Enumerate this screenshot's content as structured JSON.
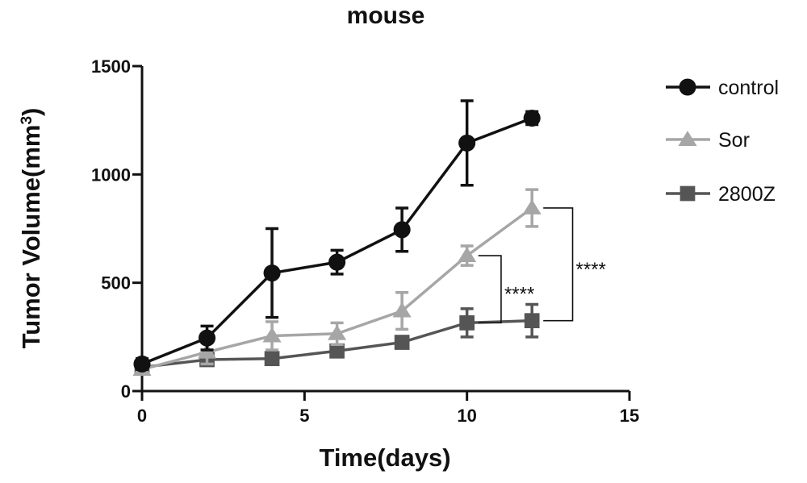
{
  "chart_data": {
    "type": "line",
    "title": "mouse",
    "xlabel": "Time(days)",
    "ylabel": "Tumor Volume(mm",
    "ylabel_superscript": "3",
    "ylabel_close": ")",
    "xlim": [
      0,
      15
    ],
    "ylim": [
      0,
      1500
    ],
    "xticks": [
      0,
      5,
      10,
      15
    ],
    "yticks": [
      0,
      500,
      1000,
      1500
    ],
    "grid": false,
    "legend_position": "right",
    "series": [
      {
        "name": "control",
        "marker": "circle",
        "color": "#111111",
        "x": [
          0,
          2,
          4,
          6,
          8,
          10,
          12
        ],
        "y": [
          125,
          245,
          545,
          595,
          745,
          1145,
          1260
        ],
        "err": [
          25,
          55,
          205,
          55,
          100,
          195,
          30
        ]
      },
      {
        "name": "Sor",
        "marker": "triangle",
        "color": "#a6a6a6",
        "x": [
          0,
          2,
          4,
          6,
          8,
          10,
          12
        ],
        "y": [
          100,
          180,
          255,
          265,
          370,
          625,
          845
        ],
        "err": [
          20,
          55,
          65,
          50,
          85,
          45,
          85
        ]
      },
      {
        "name": "2800Z",
        "marker": "square",
        "color": "#555555",
        "x": [
          0,
          2,
          4,
          6,
          8,
          10,
          12
        ],
        "y": [
          110,
          145,
          150,
          185,
          225,
          315,
          325
        ],
        "err": [
          20,
          20,
          20,
          20,
          20,
          65,
          75
        ]
      }
    ],
    "annotations": [
      {
        "text": "****",
        "from_series": "Sor",
        "to_series": "2800Z",
        "at_x": 10
      },
      {
        "text": "****",
        "from_series": "Sor",
        "to_series": "2800Z",
        "at_x": 12
      }
    ]
  }
}
